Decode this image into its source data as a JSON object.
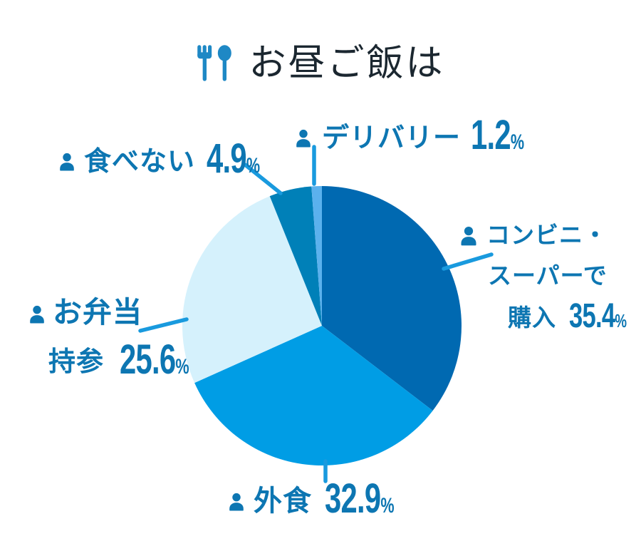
{
  "title": {
    "text": "お昼ご飯は"
  },
  "chart_data": {
    "type": "pie",
    "title": "お昼ご飯は",
    "unit": "%",
    "start_angle_deg": 0,
    "direction": "clockwise",
    "legend": "callout-labels",
    "slices": [
      {
        "label": "コンビニ・スーパーで購入",
        "value": 35.4,
        "color": "#0069b1"
      },
      {
        "label": "外食",
        "value": 32.9,
        "color": "#009de5"
      },
      {
        "label": "お弁当持参",
        "value": 25.6,
        "color": "#d5f1fc"
      },
      {
        "label": "食べない",
        "value": 4.9,
        "color": "#0080b8"
      },
      {
        "label": "デリバリー",
        "value": 1.2,
        "color": "#5bb1ed"
      }
    ]
  },
  "callouts": {
    "delivery": {
      "label": "デリバリー",
      "value": "1.2",
      "unit": "%"
    },
    "skip": {
      "label": "食べない",
      "value": "4.9",
      "unit": "%"
    },
    "eat_out": {
      "label": "外食",
      "value": "32.9",
      "unit": "%"
    },
    "bento": {
      "line1": "お弁当",
      "line2": "持参",
      "value": "25.6",
      "unit": "%"
    },
    "convenience": {
      "line1": "コンビニ・",
      "line2": "スーパーで",
      "line3": "購入",
      "value": "35.4",
      "unit": "%"
    }
  },
  "colors": {
    "label_text": "#0d76b2",
    "title_text": "#1b2730",
    "title_icon": "#1e88c5",
    "leader_line": "#199ade",
    "background": "#ffffff"
  }
}
